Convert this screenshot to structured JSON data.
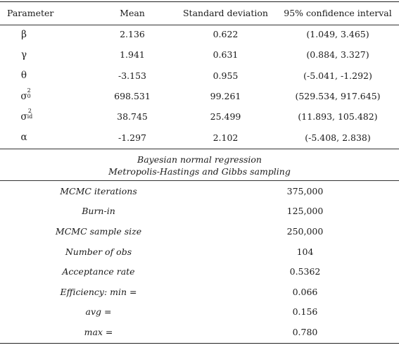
{
  "params_table": {
    "headers": [
      "Parameter",
      "Mean",
      "Standard deviation",
      "95% confidence interval"
    ],
    "rows": [
      {
        "param": "β",
        "sup": "",
        "sub": "",
        "mean": "2.136",
        "sd": "0.622",
        "ci": "(1.049, 3.465)"
      },
      {
        "param": "γ",
        "sup": "",
        "sub": "",
        "mean": "1.941",
        "sd": "0.631",
        "ci": "(0.884, 3.327)"
      },
      {
        "param": "θ",
        "sup": "",
        "sub": "",
        "mean": "-3.153",
        "sd": "0.955",
        "ci": "(-5.041, -1.292)"
      },
      {
        "param": "σ",
        "sup": "2",
        "sub": "0",
        "mean": "698.531",
        "sd": "99.261",
        "ci": "(529.534, 917.645)"
      },
      {
        "param": "σ",
        "sup": "2",
        "sub": "id",
        "mean": "38.745",
        "sd": "25.499",
        "ci": "(11.893, 105.482)"
      },
      {
        "param": "α",
        "sup": "",
        "sub": "",
        "mean": "-1.297",
        "sd": "2.102",
        "ci": "(-5.408, 2.838)"
      }
    ]
  },
  "caption": {
    "line1": "Bayesian normal regression",
    "line2": "Metropolis-Hastings and Gibbs sampling"
  },
  "mcmc_table": {
    "rows": [
      {
        "label": "MCMC iterations",
        "value": "375,000"
      },
      {
        "label": "Burn-in",
        "value": "125,000"
      },
      {
        "label": "MCMC sample size",
        "value": "250,000"
      },
      {
        "label": "Number of obs",
        "value": "104"
      },
      {
        "label": "Acceptance rate",
        "value": "0.5362"
      },
      {
        "label": "Efficiency: min =",
        "value": "0.066"
      },
      {
        "label": "avg =",
        "value": "0.156"
      },
      {
        "label": "max =",
        "value": "0.780"
      }
    ]
  }
}
